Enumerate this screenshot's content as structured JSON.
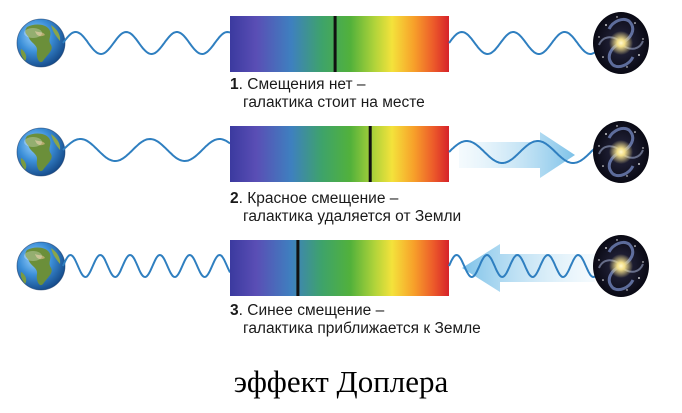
{
  "colors": {
    "spectrum": [
      "#3c3aa0",
      "#5b4fb6",
      "#3e7fbf",
      "#3fa16a",
      "#4caf3a",
      "#a5cf3a",
      "#f4e13b",
      "#f6a22a",
      "#ee5a2a",
      "#d8242a"
    ],
    "wave": "#2f7fc0",
    "line": "#111111",
    "arrow": "#8fcbec"
  },
  "rows": [
    {
      "num": "1",
      "line1": "Смещения нет –",
      "line2": "галактика стоит на месте",
      "shift": 0.48,
      "arrow": "none"
    },
    {
      "num": "2",
      "line1": "Красное смещение –",
      "line2": "галактика удаляется от Земли",
      "shift": 0.64,
      "arrow": "right"
    },
    {
      "num": "3",
      "line1": "Синее смещение –",
      "line2": "галактика приближается к Земле",
      "shift": 0.31,
      "arrow": "left"
    }
  ],
  "title": "эффект Доплера"
}
